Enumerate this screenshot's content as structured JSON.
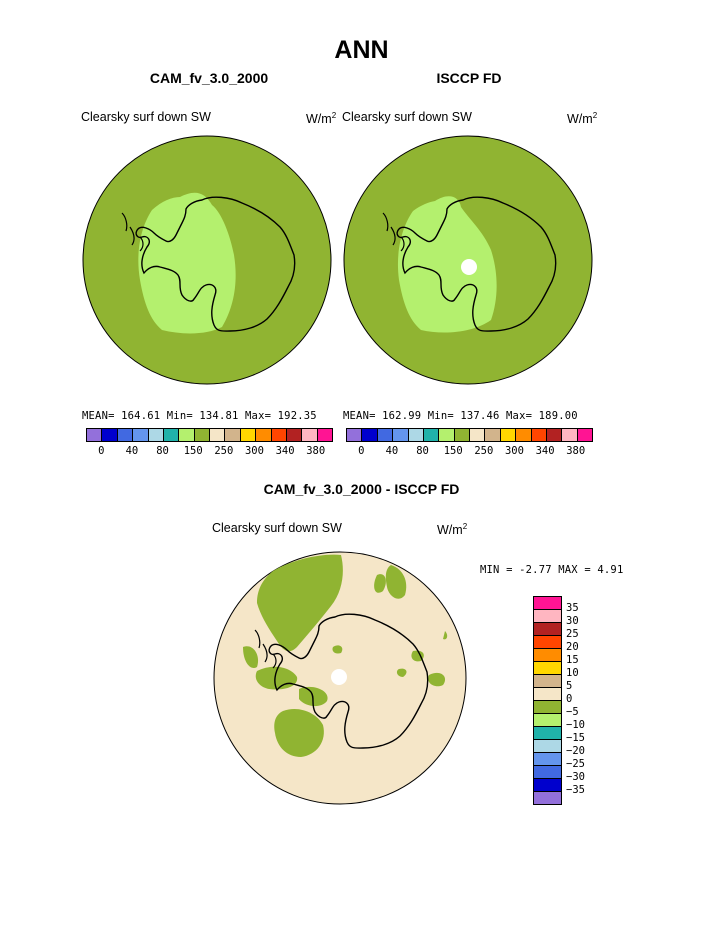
{
  "title": "ANN",
  "panels": [
    {
      "case_name": "CAM_fv_3.0_2000",
      "variable": "Clearsky surf down SW",
      "units": "W/m",
      "units_exp": "2",
      "stats": "MEAN= 164.61  Min= 134.81  Max= 192.35",
      "colorbar_labels": [
        "0",
        "40",
        "80",
        "150",
        "250",
        "300",
        "340",
        "380"
      ]
    },
    {
      "case_name": "ISCCP FD",
      "variable": "Clearsky surf down SW",
      "units": "W/m",
      "units_exp": "2",
      "stats": "MEAN= 162.99  Min= 137.46  Max= 189.00",
      "colorbar_labels": [
        "0",
        "40",
        "80",
        "150",
        "250",
        "300",
        "340",
        "380"
      ]
    }
  ],
  "diff_panel": {
    "case_name": "CAM_fv_3.0_2000 - ISCCP FD",
    "variable": "Clearsky surf down SW",
    "units": "W/m",
    "units_exp": "2",
    "stats": "MIN =   -2.77  MAX =    4.91",
    "colorbar_labels": [
      "35",
      "30",
      "25",
      "20",
      "15",
      "10",
      "5",
      "0",
      "−5",
      "−10",
      "−15",
      "−20",
      "−25",
      "−30",
      "−35"
    ]
  },
  "colors": {
    "abs_scale": [
      "#9370db",
      "#0000cd",
      "#4169e1",
      "#6495ed",
      "#add8e6",
      "#20b2aa",
      "#b4f06e",
      "#90b432",
      "#f5e6c8",
      "#d2b48c",
      "#ffd700",
      "#ff8c00",
      "#ff4500",
      "#b22222",
      "#ffb6c1",
      "#ff1493"
    ],
    "diff_scale": [
      "#ff1493",
      "#ffb6c1",
      "#b22222",
      "#ff4500",
      "#ff8c00",
      "#ffd700",
      "#d2b48c",
      "#f5e6c8",
      "#90b432",
      "#b4f06e",
      "#20b2aa",
      "#add8e6",
      "#6495ed",
      "#4169e1",
      "#0000cd",
      "#9370db"
    ],
    "ocean_fill": "#90b432",
    "interior_fill": "#b4f06e",
    "diff_background": "#f5e6c8",
    "coast": "#000000"
  },
  "projection": "south-polar-stereographic"
}
